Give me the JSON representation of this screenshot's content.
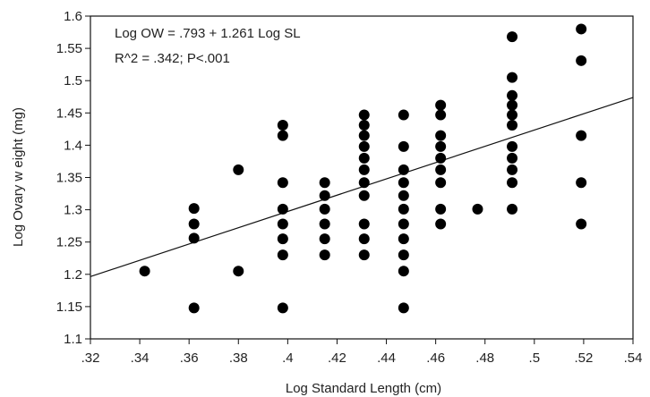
{
  "chart_data": {
    "type": "scatter",
    "title": "",
    "xlabel": "Log Standard Length (cm)",
    "ylabel": "Log Ovary w eight (mg)",
    "xlim": [
      0.32,
      0.54
    ],
    "ylim": [
      1.1,
      1.6
    ],
    "x_ticks": [
      0.32,
      0.34,
      0.36,
      0.38,
      0.4,
      0.42,
      0.44,
      0.46,
      0.48,
      0.5,
      0.52,
      0.54
    ],
    "x_tick_labels": [
      ".32",
      ".34",
      ".36",
      ".38",
      ".4",
      ".42",
      ".44",
      ".46",
      ".48",
      ".5",
      ".52",
      ".54"
    ],
    "y_ticks": [
      1.1,
      1.15,
      1.2,
      1.25,
      1.3,
      1.35,
      1.4,
      1.45,
      1.5,
      1.55,
      1.6
    ],
    "y_tick_labels": [
      "1.1",
      "1.15",
      "1.2",
      "1.25",
      "1.3",
      "1.35",
      "1.4",
      "1.45",
      "1.5",
      "1.55",
      "1.6"
    ],
    "grid": false,
    "annotations": [
      "Log OW = .793 + 1.261 Log SL",
      "R^2 = .342; P<.001"
    ],
    "regression": {
      "intercept": 0.793,
      "slope": 1.261
    },
    "series": [
      {
        "marker": "black filled circle",
        "points": [
          [
            0.342,
            1.205
          ],
          [
            0.362,
            1.302
          ],
          [
            0.362,
            1.278
          ],
          [
            0.362,
            1.256
          ],
          [
            0.362,
            1.148
          ],
          [
            0.38,
            1.362
          ],
          [
            0.38,
            1.205
          ],
          [
            0.398,
            1.431
          ],
          [
            0.398,
            1.415
          ],
          [
            0.398,
            1.342
          ],
          [
            0.398,
            1.301
          ],
          [
            0.398,
            1.278
          ],
          [
            0.398,
            1.255
          ],
          [
            0.398,
            1.23
          ],
          [
            0.398,
            1.148
          ],
          [
            0.415,
            1.342
          ],
          [
            0.415,
            1.322
          ],
          [
            0.415,
            1.301
          ],
          [
            0.415,
            1.278
          ],
          [
            0.415,
            1.255
          ],
          [
            0.415,
            1.23
          ],
          [
            0.431,
            1.447
          ],
          [
            0.431,
            1.431
          ],
          [
            0.431,
            1.415
          ],
          [
            0.431,
            1.398
          ],
          [
            0.431,
            1.38
          ],
          [
            0.431,
            1.362
          ],
          [
            0.431,
            1.342
          ],
          [
            0.431,
            1.322
          ],
          [
            0.431,
            1.278
          ],
          [
            0.431,
            1.255
          ],
          [
            0.431,
            1.23
          ],
          [
            0.447,
            1.447
          ],
          [
            0.447,
            1.398
          ],
          [
            0.447,
            1.362
          ],
          [
            0.447,
            1.342
          ],
          [
            0.447,
            1.322
          ],
          [
            0.447,
            1.301
          ],
          [
            0.447,
            1.278
          ],
          [
            0.447,
            1.255
          ],
          [
            0.447,
            1.23
          ],
          [
            0.447,
            1.205
          ],
          [
            0.447,
            1.148
          ],
          [
            0.462,
            1.462
          ],
          [
            0.462,
            1.447
          ],
          [
            0.462,
            1.415
          ],
          [
            0.462,
            1.398
          ],
          [
            0.462,
            1.38
          ],
          [
            0.462,
            1.362
          ],
          [
            0.462,
            1.342
          ],
          [
            0.462,
            1.301
          ],
          [
            0.462,
            1.278
          ],
          [
            0.477,
            1.301
          ],
          [
            0.491,
            1.568
          ],
          [
            0.491,
            1.505
          ],
          [
            0.491,
            1.477
          ],
          [
            0.491,
            1.462
          ],
          [
            0.491,
            1.447
          ],
          [
            0.491,
            1.431
          ],
          [
            0.491,
            1.398
          ],
          [
            0.491,
            1.38
          ],
          [
            0.491,
            1.362
          ],
          [
            0.491,
            1.342
          ],
          [
            0.491,
            1.301
          ],
          [
            0.519,
            1.58
          ],
          [
            0.519,
            1.531
          ],
          [
            0.519,
            1.415
          ],
          [
            0.519,
            1.342
          ],
          [
            0.519,
            1.278
          ]
        ]
      }
    ]
  }
}
